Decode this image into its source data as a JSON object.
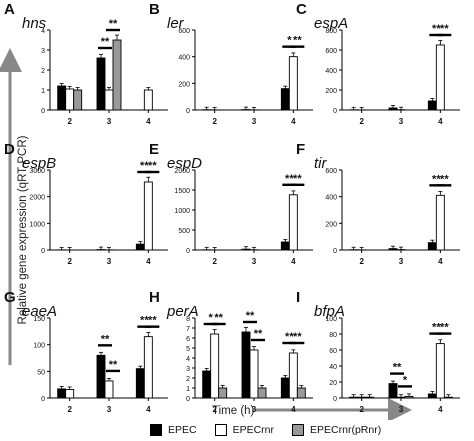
{
  "figure": {
    "ylabel": "Relative gene expression (qRT-PCR)",
    "xlabel": "Time (h)"
  },
  "legend": [
    {
      "label": "EPEC",
      "color": "#000000"
    },
    {
      "label": "EPECrnr",
      "color": "#ffffff"
    },
    {
      "label": "EPECrnr(pRnr)",
      "color": "#999999"
    }
  ],
  "chart_data": [
    {
      "type": "bar",
      "panel": "A",
      "title": "hns",
      "categories": [
        "2",
        "3",
        "4"
      ],
      "series": [
        {
          "name": "EPEC",
          "values": [
            1.2,
            2.6,
            0
          ]
        },
        {
          "name": "EPECrnr",
          "values": [
            1.05,
            1.0,
            1.0
          ]
        },
        {
          "name": "EPECrnr(pRnr)",
          "values": [
            1.0,
            3.5,
            0
          ]
        }
      ],
      "ylim": [
        0,
        4
      ],
      "yticks": [
        0,
        1,
        2,
        3,
        4
      ],
      "sig": [
        {
          "cat": 1,
          "pair": [
            0,
            1
          ],
          "label": "**"
        },
        {
          "cat": 1,
          "pair": [
            1,
            2
          ],
          "label": "**"
        }
      ]
    },
    {
      "type": "bar",
      "panel": "B",
      "title": "ler",
      "categories": [
        "2",
        "3",
        "4"
      ],
      "series": [
        {
          "name": "EPEC",
          "values": [
            2,
            3,
            160
          ]
        },
        {
          "name": "EPECrnr",
          "values": [
            1,
            1,
            400
          ]
        },
        {
          "name": "EPECrnr(pRnr)",
          "values": [
            0,
            0,
            0
          ]
        }
      ],
      "ylim": [
        0,
        600
      ],
      "yticks": [
        0,
        200,
        400,
        600
      ],
      "sig": [
        {
          "cat": 2,
          "pair": [
            0,
            1
          ],
          "label": "*"
        },
        {
          "cat": 2,
          "pair": [
            1,
            2
          ],
          "label": "**"
        }
      ]
    },
    {
      "type": "bar",
      "panel": "C",
      "title": "espA",
      "categories": [
        "2",
        "3",
        "4"
      ],
      "series": [
        {
          "name": "EPEC",
          "values": [
            2,
            20,
            90
          ]
        },
        {
          "name": "EPECrnr",
          "values": [
            1,
            3,
            650
          ]
        },
        {
          "name": "EPECrnr(pRnr)",
          "values": [
            0,
            0,
            0
          ]
        }
      ],
      "ylim": [
        0,
        800
      ],
      "yticks": [
        0,
        200,
        400,
        600,
        800
      ],
      "sig": [
        {
          "cat": 2,
          "pair": [
            0,
            1
          ],
          "label": "**"
        },
        {
          "cat": 2,
          "pair": [
            1,
            2
          ],
          "label": "**"
        }
      ]
    },
    {
      "type": "bar",
      "panel": "D",
      "title": "espB",
      "categories": [
        "2",
        "3",
        "4"
      ],
      "series": [
        {
          "name": "EPEC",
          "values": [
            5,
            15,
            220
          ]
        },
        {
          "name": "EPECrnr",
          "values": [
            2,
            5,
            2550
          ]
        },
        {
          "name": "EPECrnr(pRnr)",
          "values": [
            0,
            0,
            0
          ]
        }
      ],
      "ylim": [
        0,
        3000
      ],
      "yticks": [
        0,
        1000,
        2000,
        3000
      ],
      "sig": [
        {
          "cat": 2,
          "pair": [
            0,
            1
          ],
          "label": "**"
        },
        {
          "cat": 2,
          "pair": [
            1,
            2
          ],
          "label": "**"
        }
      ]
    },
    {
      "type": "bar",
      "panel": "E",
      "title": "espD",
      "categories": [
        "2",
        "3",
        "4"
      ],
      "series": [
        {
          "name": "EPEC",
          "values": [
            5,
            20,
            200
          ]
        },
        {
          "name": "EPECrnr",
          "values": [
            2,
            5,
            1380
          ]
        },
        {
          "name": "EPECrnr(pRnr)",
          "values": [
            0,
            0,
            0
          ]
        }
      ],
      "ylim": [
        0,
        2000
      ],
      "yticks": [
        0,
        500,
        1000,
        1500,
        2000
      ],
      "sig": [
        {
          "cat": 2,
          "pair": [
            0,
            1
          ],
          "label": "**"
        },
        {
          "cat": 2,
          "pair": [
            1,
            2
          ],
          "label": "**"
        }
      ]
    },
    {
      "type": "bar",
      "panel": "F",
      "title": "tir",
      "categories": [
        "2",
        "3",
        "4"
      ],
      "series": [
        {
          "name": "EPEC",
          "values": [
            2,
            10,
            55
          ]
        },
        {
          "name": "EPECrnr",
          "values": [
            1,
            3,
            410
          ]
        },
        {
          "name": "EPECrnr(pRnr)",
          "values": [
            0,
            0,
            0
          ]
        }
      ],
      "ylim": [
        0,
        600
      ],
      "yticks": [
        0,
        200,
        400,
        600
      ],
      "sig": [
        {
          "cat": 2,
          "pair": [
            0,
            1
          ],
          "label": "**"
        },
        {
          "cat": 2,
          "pair": [
            1,
            2
          ],
          "label": "**"
        }
      ]
    },
    {
      "type": "bar",
      "panel": "G",
      "title": "eaeA",
      "categories": [
        "2",
        "3",
        "4"
      ],
      "series": [
        {
          "name": "EPEC",
          "values": [
            17,
            80,
            55
          ]
        },
        {
          "name": "EPECrnr",
          "values": [
            16,
            32,
            115
          ]
        },
        {
          "name": "EPECrnr(pRnr)",
          "values": [
            0,
            0,
            0
          ]
        }
      ],
      "ylim": [
        0,
        150
      ],
      "yticks": [
        0,
        50,
        100,
        150
      ],
      "sig": [
        {
          "cat": 1,
          "pair": [
            0,
            1
          ],
          "label": "**"
        },
        {
          "cat": 1,
          "pair": [
            1,
            2
          ],
          "label": "**"
        },
        {
          "cat": 2,
          "pair": [
            0,
            1
          ],
          "label": "**"
        },
        {
          "cat": 2,
          "pair": [
            1,
            2
          ],
          "label": "**"
        }
      ]
    },
    {
      "type": "bar",
      "panel": "H",
      "title": "perA",
      "categories": [
        "2",
        "3",
        "4"
      ],
      "series": [
        {
          "name": "EPEC",
          "values": [
            2.7,
            6.6,
            2.0
          ]
        },
        {
          "name": "EPECrnr",
          "values": [
            6.4,
            4.8,
            4.5
          ]
        },
        {
          "name": "EPECrnr(pRnr)",
          "values": [
            1.0,
            1.0,
            1.0
          ]
        }
      ],
      "ylim": [
        0,
        8
      ],
      "yticks": [
        0,
        1,
        2,
        3,
        4,
        5,
        6,
        7,
        8
      ],
      "sig": [
        {
          "cat": 0,
          "pair": [
            0,
            1
          ],
          "label": "*"
        },
        {
          "cat": 0,
          "pair": [
            1,
            2
          ],
          "label": "**"
        },
        {
          "cat": 1,
          "pair": [
            0,
            1
          ],
          "label": "**"
        },
        {
          "cat": 1,
          "pair": [
            1,
            2
          ],
          "label": "**"
        },
        {
          "cat": 2,
          "pair": [
            0,
            1
          ],
          "label": "**"
        },
        {
          "cat": 2,
          "pair": [
            1,
            2
          ],
          "label": "**"
        }
      ]
    },
    {
      "type": "bar",
      "panel": "I",
      "title": "bfpA",
      "categories": [
        "2",
        "3",
        "4"
      ],
      "series": [
        {
          "name": "EPEC",
          "values": [
            1,
            18,
            5
          ]
        },
        {
          "name": "EPECrnr",
          "values": [
            1,
            1,
            68
          ]
        },
        {
          "name": "EPECrnr(pRnr)",
          "values": [
            1,
            2,
            1
          ]
        }
      ],
      "ylim": [
        0,
        100
      ],
      "yticks": [
        0,
        20,
        40,
        60,
        80,
        100
      ],
      "sig": [
        {
          "cat": 1,
          "pair": [
            0,
            1
          ],
          "label": "**"
        },
        {
          "cat": 1,
          "pair": [
            1,
            2
          ],
          "label": "*"
        },
        {
          "cat": 2,
          "pair": [
            0,
            1
          ],
          "label": "**"
        },
        {
          "cat": 2,
          "pair": [
            1,
            2
          ],
          "label": "**"
        }
      ]
    }
  ]
}
